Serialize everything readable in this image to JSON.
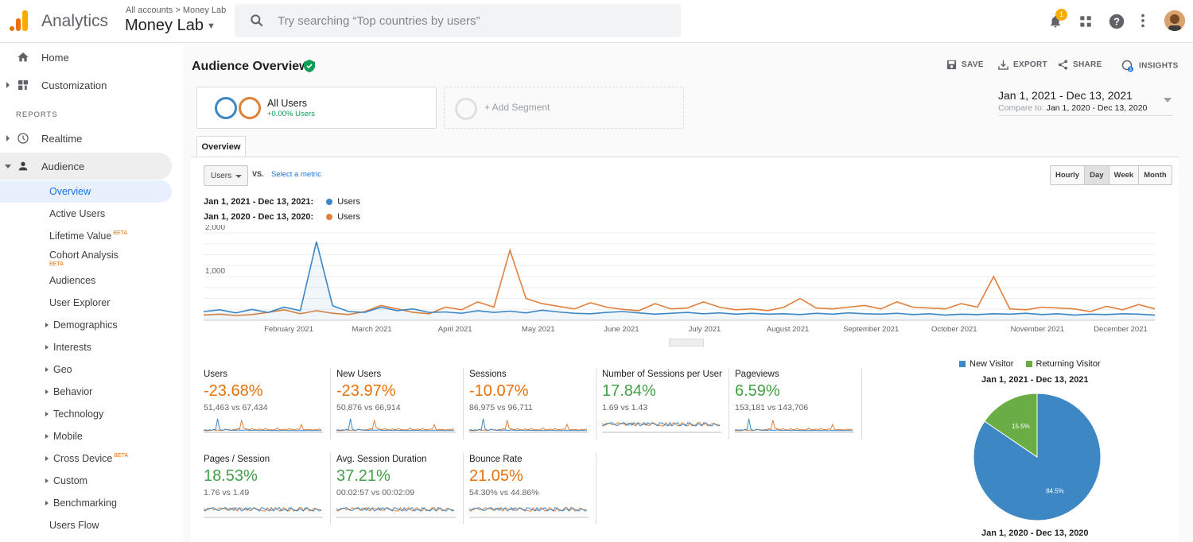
{
  "topbar": {
    "app_name": "Analytics",
    "breadcrumb": "All accounts > Money Lab",
    "account_name": "Money Lab",
    "search_placeholder": "Try searching “Top countries by users”",
    "notification_count": "1"
  },
  "sidebar": {
    "top_items": [
      {
        "label": "Home"
      },
      {
        "label": "Customization"
      }
    ],
    "reports_label": "REPORTS",
    "realtime": "Realtime",
    "audience": "Audience",
    "audience_items": [
      {
        "label": "Overview"
      },
      {
        "label": "Active Users"
      },
      {
        "label": "Lifetime Value",
        "beta": "BETA"
      },
      {
        "label": "Cohort Analysis",
        "beta": "BETA"
      },
      {
        "label": "Audiences"
      },
      {
        "label": "User Explorer"
      },
      {
        "label": "Demographics"
      },
      {
        "label": "Interests"
      },
      {
        "label": "Geo"
      },
      {
        "label": "Behavior"
      },
      {
        "label": "Technology"
      },
      {
        "label": "Mobile"
      },
      {
        "label": "Cross Device",
        "beta": "BETA"
      },
      {
        "label": "Custom"
      },
      {
        "label": "Benchmarking"
      },
      {
        "label": "Users Flow"
      }
    ]
  },
  "main": {
    "title": "Audience Overview",
    "actions": {
      "save": "SAVE",
      "export": "EXPORT",
      "share": "SHARE",
      "insights": "INSIGHTS"
    },
    "segment": {
      "name": "All Users",
      "sub": "+0.00% Users"
    },
    "add_segment": "+ Add Segment",
    "date_range": "Jan 1, 2021 - Dec 13, 2021",
    "compare_label": "Compare to:",
    "compare_range": "Jan 1, 2020 - Dec 13, 2020",
    "tab": "Overview",
    "metric_select": "Users",
    "vs": "VS.",
    "select_metric": "Select a metric",
    "granularity": [
      "Hourly",
      "Day",
      "Week",
      "Month"
    ],
    "legend": [
      {
        "range": "Jan 1, 2021 - Dec 13, 2021:",
        "metric": "Users",
        "color": "#3d87c5"
      },
      {
        "range": "Jan 1, 2020 - Dec 13, 2020:",
        "metric": "Users",
        "color": "#e0803b"
      }
    ]
  },
  "chart_data": [
    {
      "type": "line",
      "y_ticks": [
        "2,000",
        "1,000"
      ],
      "ylim": [
        0,
        2000
      ],
      "x_ticks": [
        "February 2021",
        "March 2021",
        "April 2021",
        "May 2021",
        "June 2021",
        "July 2021",
        "August 2021",
        "September 2021",
        "October 2021",
        "November 2021",
        "December 2021"
      ],
      "series": [
        {
          "name": "Users",
          "color": "#3d87c5",
          "values": [
            200,
            240,
            170,
            250,
            180,
            300,
            220,
            1800,
            330,
            200,
            180,
            300,
            220,
            260,
            180,
            190,
            160,
            220,
            180,
            210,
            170,
            230,
            190,
            160,
            150,
            180,
            200,
            170,
            140,
            160,
            180,
            150,
            170,
            140,
            160,
            140,
            150,
            130,
            160,
            140,
            170,
            150,
            140,
            160,
            130,
            150,
            120,
            140,
            130,
            150,
            140,
            160,
            130,
            150,
            120,
            140,
            130,
            150,
            140,
            120
          ]
        },
        {
          "name": "Users",
          "color": "#e0803b",
          "values": [
            120,
            140,
            110,
            130,
            180,
            240,
            150,
            220,
            160,
            130,
            200,
            340,
            260,
            180,
            150,
            300,
            240,
            420,
            300,
            1600,
            500,
            380,
            320,
            260,
            400,
            300,
            250,
            220,
            380,
            260,
            280,
            420,
            300,
            240,
            260,
            220,
            300,
            500,
            280,
            260,
            300,
            340,
            260,
            420,
            300,
            280,
            260,
            380,
            300,
            1000,
            260,
            240,
            300,
            280,
            260,
            200,
            320,
            240,
            360,
            260
          ]
        }
      ]
    },
    {
      "type": "pie",
      "legend": [
        "New Visitor",
        "Returning Visitor"
      ],
      "title": "Jan 1, 2021 - Dec 13, 2021",
      "slices": [
        {
          "label": "New Visitor",
          "value": 84.5,
          "color": "#3d87c5",
          "text": "84.5%"
        },
        {
          "label": "Returning Visitor",
          "value": 15.5,
          "color": "#6aad45",
          "text": "15.5%"
        }
      ],
      "second_title": "Jan 1, 2020 - Dec 13, 2020"
    }
  ],
  "metrics": [
    {
      "name": "Users",
      "change": "-23.68%",
      "dir": "neg",
      "compare": "51,463 vs 67,434"
    },
    {
      "name": "New Users",
      "change": "-23.97%",
      "dir": "neg",
      "compare": "50,876 vs 66,914"
    },
    {
      "name": "Sessions",
      "change": "-10.07%",
      "dir": "neg",
      "compare": "86,975 vs 96,711"
    },
    {
      "name": "Number of Sessions per User",
      "change": "17.84%",
      "dir": "pos",
      "compare": "1.69 vs 1.43"
    },
    {
      "name": "Pageviews",
      "change": "6.59%",
      "dir": "pos",
      "compare": "153,181 vs 143,706"
    },
    {
      "name": "Pages / Session",
      "change": "18.53%",
      "dir": "pos",
      "compare": "1.76 vs 1.49"
    },
    {
      "name": "Avg. Session Duration",
      "change": "37.21%",
      "dir": "pos",
      "compare": "00:02:57 vs 00:02:09"
    },
    {
      "name": "Bounce Rate",
      "change": "21.05%",
      "dir": "neg",
      "compare": "54.30% vs 44.86%"
    }
  ]
}
